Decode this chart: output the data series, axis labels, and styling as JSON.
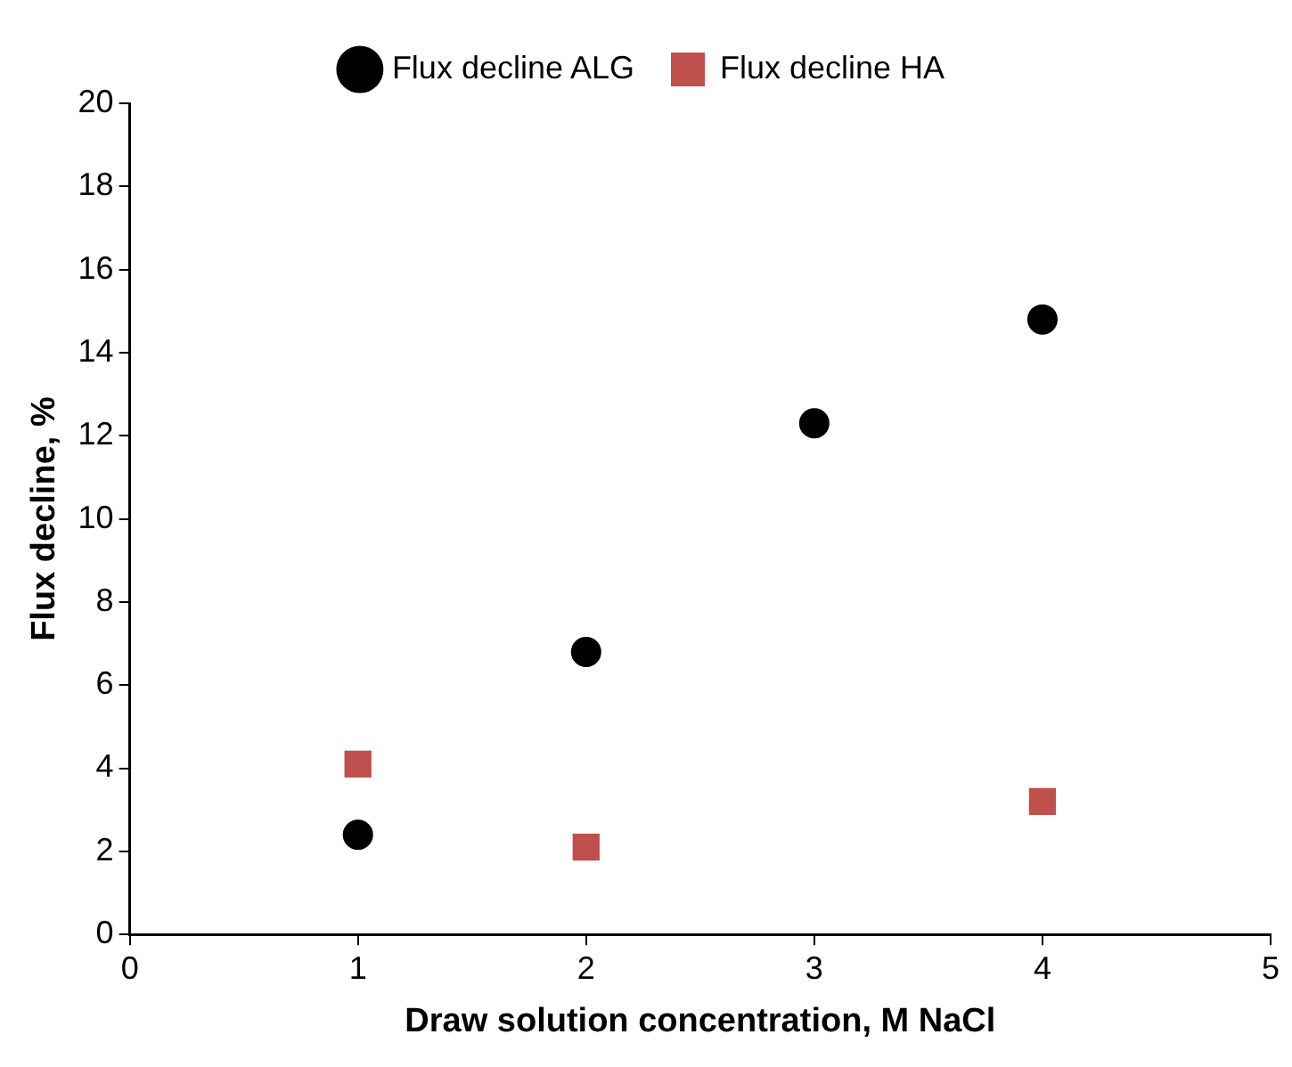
{
  "chart_data": {
    "type": "scatter",
    "xlabel": "Draw solution concentration, M NaCl",
    "ylabel": "Flux decline, %",
    "xlim": [
      0,
      5
    ],
    "xticks": [
      0,
      1,
      2,
      3,
      4,
      5
    ],
    "ylim": [
      0,
      20
    ],
    "yticks": [
      0,
      2,
      4,
      6,
      8,
      10,
      12,
      14,
      16,
      18,
      20
    ],
    "grid": false,
    "legend": "top",
    "series": [
      {
        "name": "Flux decline ALG",
        "color": "#000000",
        "marker": "circle",
        "x": [
          1,
          2,
          3,
          4
        ],
        "values": [
          2.4,
          6.8,
          12.3,
          14.8
        ]
      },
      {
        "name": "Flux decline HA",
        "color": "#c0504d",
        "marker": "square",
        "x": [
          1,
          2,
          4
        ],
        "values": [
          4.1,
          2.1,
          3.2
        ]
      }
    ]
  }
}
